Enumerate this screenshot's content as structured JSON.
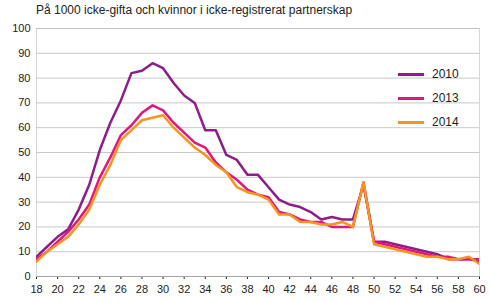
{
  "chart_data": {
    "type": "line",
    "title": "På 1000 icke-gifta och kvinnor i icke-registrerat partnerskap",
    "x": [
      18,
      19,
      20,
      21,
      22,
      23,
      24,
      25,
      26,
      27,
      28,
      29,
      30,
      31,
      32,
      33,
      34,
      35,
      36,
      37,
      38,
      39,
      40,
      41,
      42,
      43,
      44,
      45,
      46,
      47,
      48,
      49,
      50,
      51,
      52,
      53,
      54,
      55,
      56,
      57,
      58,
      59,
      60
    ],
    "series": [
      {
        "name": "2010",
        "color": "#8c1d8a",
        "values": [
          8,
          12,
          16,
          19,
          27,
          37,
          51,
          62,
          71,
          82,
          83,
          86,
          84,
          78,
          73,
          70,
          59,
          59,
          49,
          47,
          41,
          41,
          36,
          31,
          29,
          28,
          26,
          23,
          24,
          23,
          23,
          37,
          14,
          14,
          13,
          12,
          11,
          10,
          9,
          7,
          7,
          7,
          6
        ]
      },
      {
        "name": "2013",
        "color": "#e0177e",
        "values": [
          7,
          10,
          14,
          18,
          23,
          29,
          40,
          48,
          57,
          61,
          66,
          69,
          67,
          62,
          58,
          54,
          52,
          46,
          42,
          39,
          35,
          33,
          32,
          26,
          25,
          23,
          22,
          22,
          20,
          20,
          20,
          38,
          14,
          13,
          12,
          11,
          10,
          9,
          8,
          8,
          7,
          7,
          7
        ]
      },
      {
        "name": "2014",
        "color": "#f7941d",
        "values": [
          6,
          10,
          13,
          16,
          21,
          27,
          37,
          45,
          55,
          59,
          63,
          64,
          65,
          60,
          56,
          52,
          49,
          45,
          42,
          36,
          34,
          33,
          31,
          25,
          25,
          22,
          22,
          21,
          21,
          22,
          20,
          38,
          13,
          12,
          11,
          10,
          9,
          8,
          8,
          7,
          7,
          8,
          5
        ]
      }
    ],
    "xlim": [
      18,
      60
    ],
    "xticks": [
      18,
      20,
      22,
      24,
      26,
      28,
      30,
      32,
      34,
      36,
      38,
      40,
      42,
      44,
      46,
      48,
      50,
      52,
      54,
      56,
      58,
      60
    ],
    "ylim": [
      0,
      100
    ],
    "yticks": [
      0,
      10,
      20,
      30,
      40,
      50,
      60,
      70,
      80,
      90,
      100
    ],
    "grid": true,
    "legend": "top-right"
  }
}
